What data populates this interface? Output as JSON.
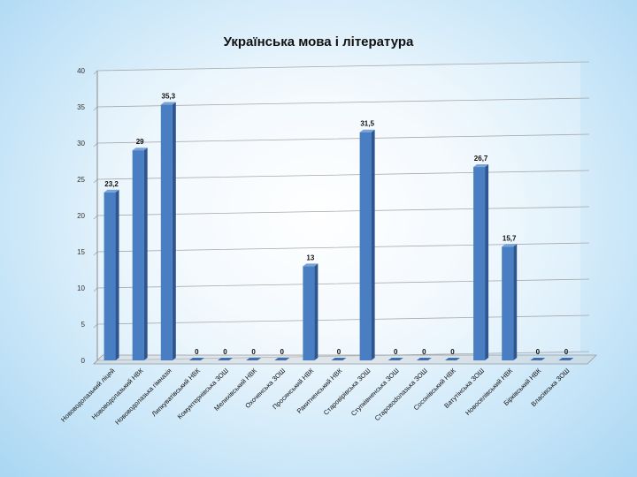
{
  "chart_data": {
    "type": "bar",
    "title": "Українська мова і література",
    "xlabel": "",
    "ylabel": "",
    "ylim": [
      0,
      40
    ],
    "yticks": [
      0,
      5,
      10,
      15,
      20,
      25,
      30,
      35,
      40
    ],
    "grid": true,
    "legend": "none",
    "bar_color": "#4a7ec2",
    "categories": [
      "Нововодолазький ліцей",
      "Нововодолазький НВК",
      "Нововодолазька гімназія",
      "Липкуватівський НВК",
      "Комунтернівська ЗОШ",
      "Мелихівський НВК",
      "Охоченська ЗОШ",
      "Просянський НВК",
      "Ракитненський НВК",
      "Старовірівська ЗОШ",
      "Ступківненська ЗОШ",
      "Старовodолазька ЗОШ",
      "Сосонівський НВК",
      "Ватутінська ЗОШ",
      "Новоселівський НВК",
      "Бірківський НВК",
      "Власівська ЗОШ"
    ],
    "values": [
      23.2,
      29,
      35.3,
      0,
      0,
      0,
      0,
      13,
      0,
      31.5,
      0,
      0,
      0,
      26.7,
      15.7,
      0,
      0
    ],
    "data_labels": [
      "23,2",
      "29",
      "35,3",
      "0",
      "0",
      "0",
      "0",
      "13",
      "0",
      "31,5",
      "0",
      "0",
      "0",
      "26,7",
      "15,7",
      "0",
      "0"
    ]
  }
}
